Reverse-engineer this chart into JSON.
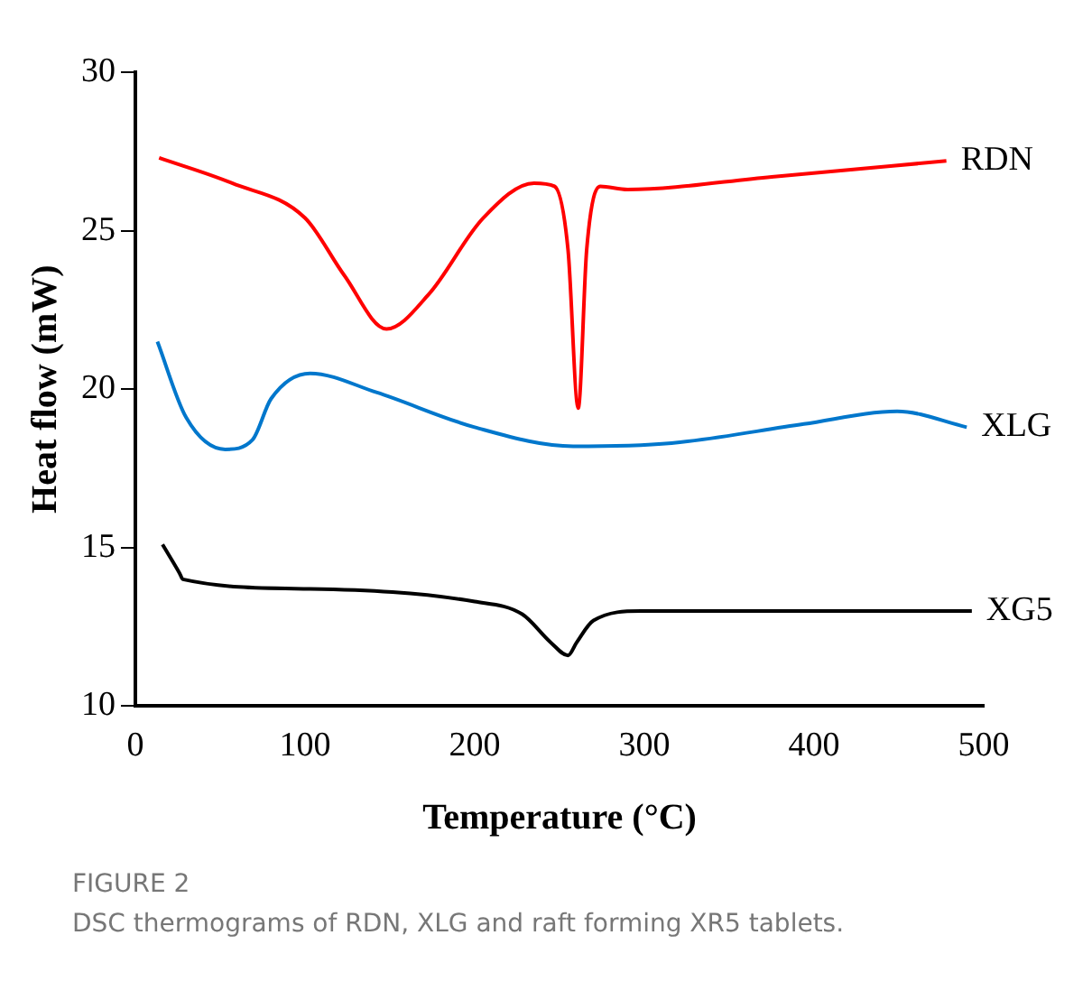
{
  "chart_data": {
    "type": "line",
    "xlabel": "Temperature (°C)",
    "ylabel": "Heat flow (mW)",
    "xlim": [
      0,
      500
    ],
    "xticks": [
      0,
      100,
      200,
      300,
      400,
      500
    ],
    "ylim": [
      10,
      30
    ],
    "yticks": [
      10,
      15,
      20,
      25,
      30
    ],
    "grid": false,
    "legend": false,
    "marker": "none",
    "line_style": "solid",
    "annotations": [
      "FIGURE 2",
      "DSC thermograms of RDN, XLG and raft forming XR5 tablets."
    ],
    "series": [
      {
        "name": "RDN",
        "color": "#ff0000",
        "x": [
          14,
          57,
          100,
          123,
          148,
          173,
          205,
          235,
          247,
          255,
          261,
          266,
          274,
          290,
          375,
          478
        ],
        "values": [
          27.3,
          26.5,
          25.4,
          23.6,
          21.9,
          23.0,
          25.4,
          26.5,
          26.4,
          24.4,
          19.4,
          24.4,
          26.4,
          26.3,
          26.7,
          27.2
        ]
      },
      {
        "name": "XLG",
        "color": "#0077cc",
        "x": [
          13,
          30,
          53,
          69,
          80,
          103,
          142,
          200,
          258,
          316,
          394,
          449,
          490
        ],
        "values": [
          21.5,
          19.1,
          18.1,
          18.4,
          19.7,
          20.5,
          19.9,
          18.8,
          18.2,
          18.3,
          18.9,
          19.3,
          18.8
        ]
      },
      {
        "name": "XG5",
        "color": "#000000",
        "x": [
          16,
          26,
          28,
          103,
          200,
          228,
          245,
          255,
          260,
          270,
          298,
          375,
          493
        ],
        "values": [
          15.1,
          14.2,
          14.0,
          13.7,
          13.3,
          12.9,
          12.0,
          11.6,
          12.0,
          12.7,
          13.0,
          13.0,
          13.0
        ]
      }
    ]
  }
}
